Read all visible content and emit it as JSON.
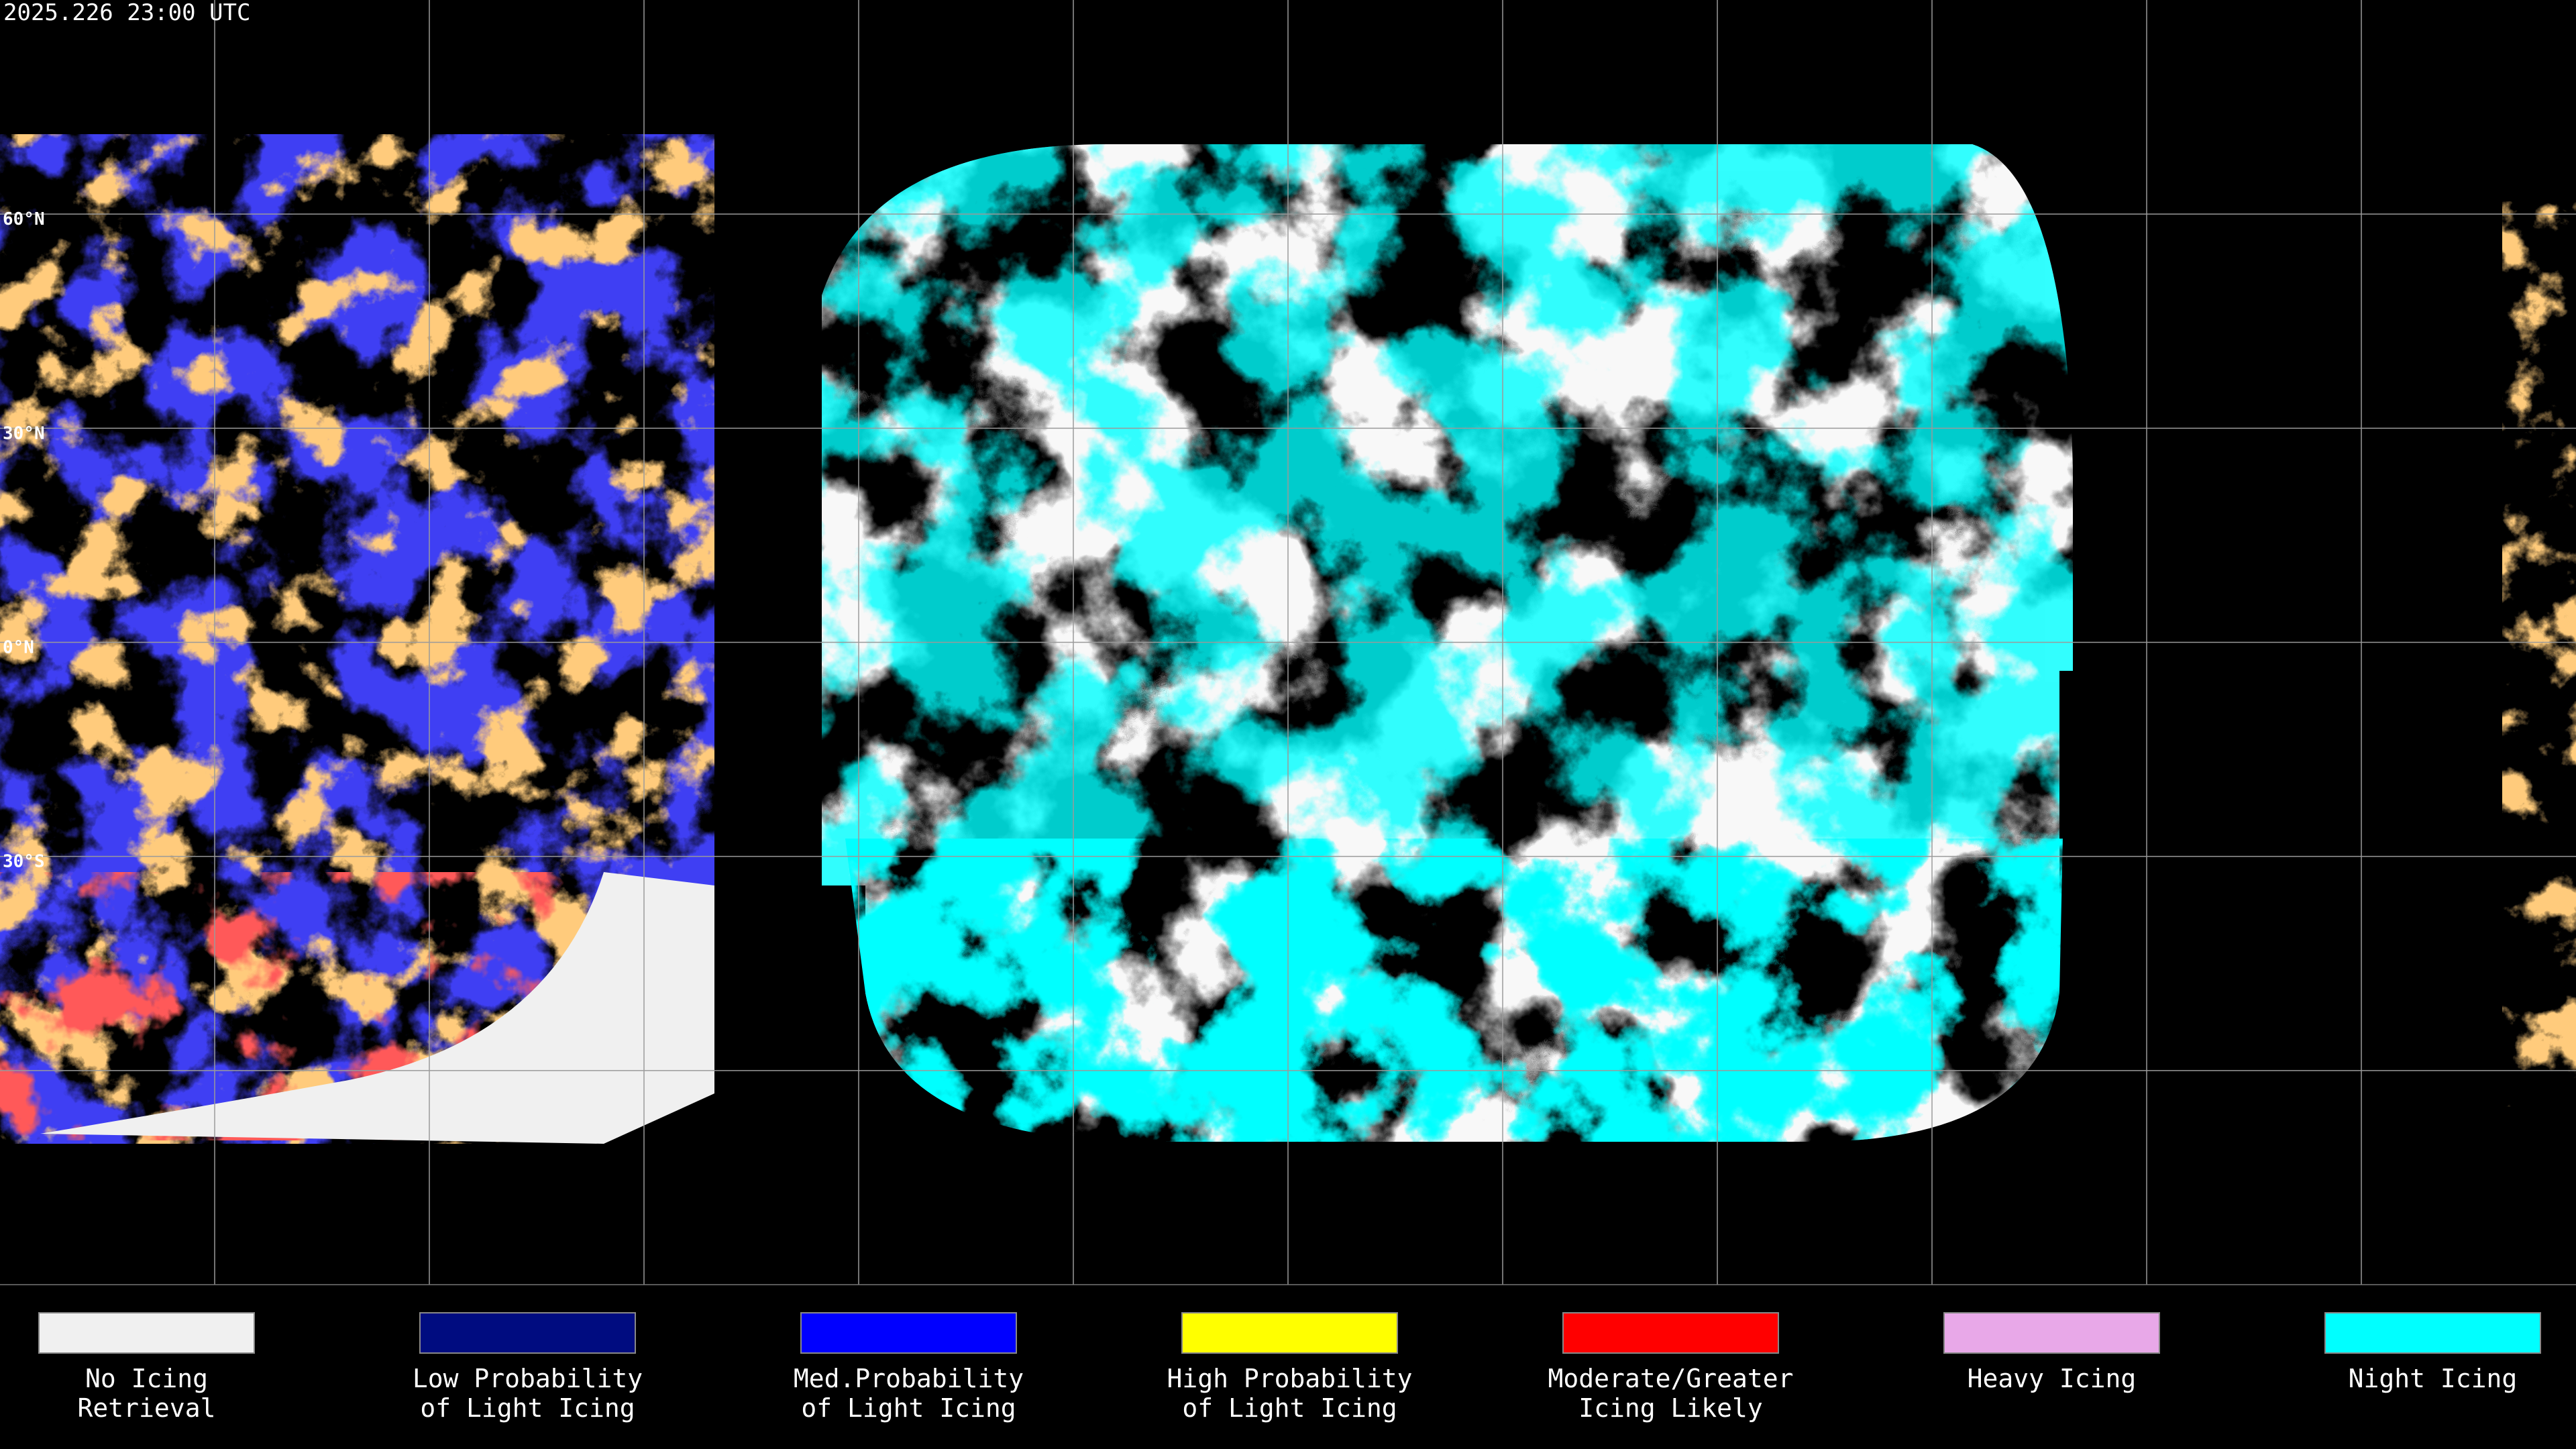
{
  "header": {
    "timestamp": "2025.226 23:00 UTC"
  },
  "latitude_labels": [
    "60°N",
    "30°N",
    "0°N",
    "30°S"
  ],
  "legend": [
    {
      "lines": [
        "No Icing",
        "Retrieval"
      ],
      "color": "#f0f0f0"
    },
    {
      "lines": [
        "Low Probability",
        "of Light Icing"
      ],
      "color": "#000c80"
    },
    {
      "lines": [
        "Med.Probability",
        "of Light Icing"
      ],
      "color": "#0000ff"
    },
    {
      "lines": [
        "High Probability",
        "of Light Icing"
      ],
      "color": "#ffff00"
    },
    {
      "lines": [
        "Moderate/Greater",
        "Icing Likely"
      ],
      "color": "#ff0000"
    },
    {
      "lines": [
        "Heavy Icing"
      ],
      "color": "#e8a8e8"
    },
    {
      "lines": [
        "Night Icing"
      ],
      "color": "#00ffff"
    }
  ]
}
